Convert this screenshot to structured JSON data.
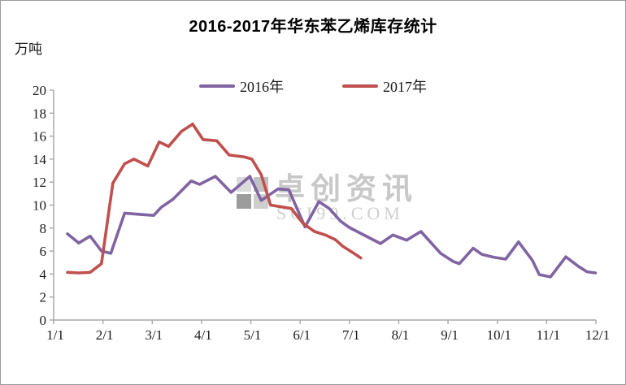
{
  "frame": {
    "title": "2016-2017年华东苯乙烯库存统计",
    "y_unit": "万吨"
  },
  "legend": [
    {
      "id": "2016",
      "label": "2016年",
      "color": "#8064A2"
    },
    {
      "id": "2017",
      "label": "2017年",
      "color": "#C0504D"
    }
  ],
  "watermark": {
    "brand": "卓创资讯",
    "domain": "SCI99.COM"
  },
  "chart_data": {
    "type": "line",
    "title": "2016-2017年华东苯乙烯库存统计",
    "xlabel": "",
    "ylabel": "万吨",
    "x_unit": "month (1 = Jan 1, weekly points)",
    "xlim": [
      1,
      12.05
    ],
    "ylim": [
      0,
      20
    ],
    "y_ticks": [
      0,
      2,
      4,
      6,
      8,
      10,
      12,
      14,
      16,
      18,
      20
    ],
    "x_ticks": [
      1,
      2,
      3,
      4,
      5,
      6,
      7,
      8,
      9,
      10,
      11,
      12
    ],
    "x_tick_labels": [
      "1/1",
      "2/1",
      "3/1",
      "4/1",
      "5/1",
      "6/1",
      "7/1",
      "8/1",
      "9/1",
      "10/1",
      "11/1",
      "12/1"
    ],
    "grid": false,
    "legend_position": "top-center",
    "axis_color": "#A6A6A6",
    "line_width": 3.6,
    "series": [
      {
        "name": "2016年",
        "color": "#8064A2",
        "points": [
          [
            1.28,
            7.5
          ],
          [
            1.51,
            6.7
          ],
          [
            1.74,
            7.3
          ],
          [
            1.97,
            6.0
          ],
          [
            2.16,
            5.8
          ],
          [
            2.44,
            9.3
          ],
          [
            2.72,
            9.2
          ],
          [
            3.03,
            9.1
          ],
          [
            3.18,
            9.8
          ],
          [
            3.42,
            10.5
          ],
          [
            3.79,
            12.1
          ],
          [
            3.96,
            11.8
          ],
          [
            4.28,
            12.5
          ],
          [
            4.6,
            11.1
          ],
          [
            4.98,
            12.5
          ],
          [
            5.21,
            10.4
          ],
          [
            5.55,
            11.4
          ],
          [
            5.77,
            11.35
          ],
          [
            6.1,
            8.1
          ],
          [
            6.38,
            10.3
          ],
          [
            6.59,
            9.7
          ],
          [
            6.82,
            8.6
          ],
          [
            7.0,
            8.05
          ],
          [
            7.63,
            6.65
          ],
          [
            7.88,
            7.4
          ],
          [
            8.16,
            6.95
          ],
          [
            8.45,
            7.7
          ],
          [
            8.85,
            5.8
          ],
          [
            9.1,
            5.1
          ],
          [
            9.23,
            4.9
          ],
          [
            9.51,
            6.25
          ],
          [
            9.69,
            5.7
          ],
          [
            9.94,
            5.45
          ],
          [
            10.17,
            5.3
          ],
          [
            10.43,
            6.8
          ],
          [
            10.71,
            5.2
          ],
          [
            10.85,
            3.95
          ],
          [
            11.08,
            3.75
          ],
          [
            11.39,
            5.5
          ],
          [
            11.65,
            4.65
          ],
          [
            11.82,
            4.2
          ],
          [
            11.99,
            4.1
          ]
        ]
      },
      {
        "name": "2017年",
        "color": "#C0504D",
        "points": [
          [
            1.28,
            4.15
          ],
          [
            1.51,
            4.1
          ],
          [
            1.74,
            4.15
          ],
          [
            1.97,
            4.9
          ],
          [
            2.2,
            11.9
          ],
          [
            2.44,
            13.6
          ],
          [
            2.63,
            14.0
          ],
          [
            2.91,
            13.4
          ],
          [
            3.14,
            15.5
          ],
          [
            3.33,
            15.1
          ],
          [
            3.59,
            16.4
          ],
          [
            3.82,
            17.05
          ],
          [
            4.03,
            15.7
          ],
          [
            4.31,
            15.6
          ],
          [
            4.56,
            14.35
          ],
          [
            4.86,
            14.2
          ],
          [
            5.02,
            14.0
          ],
          [
            5.21,
            12.65
          ],
          [
            5.4,
            10.0
          ],
          [
            5.82,
            9.7
          ],
          [
            6.06,
            8.4
          ],
          [
            6.29,
            7.7
          ],
          [
            6.51,
            7.4
          ],
          [
            6.71,
            7.0
          ],
          [
            6.87,
            6.4
          ],
          [
            7.09,
            5.8
          ],
          [
            7.23,
            5.4
          ]
        ]
      }
    ]
  }
}
